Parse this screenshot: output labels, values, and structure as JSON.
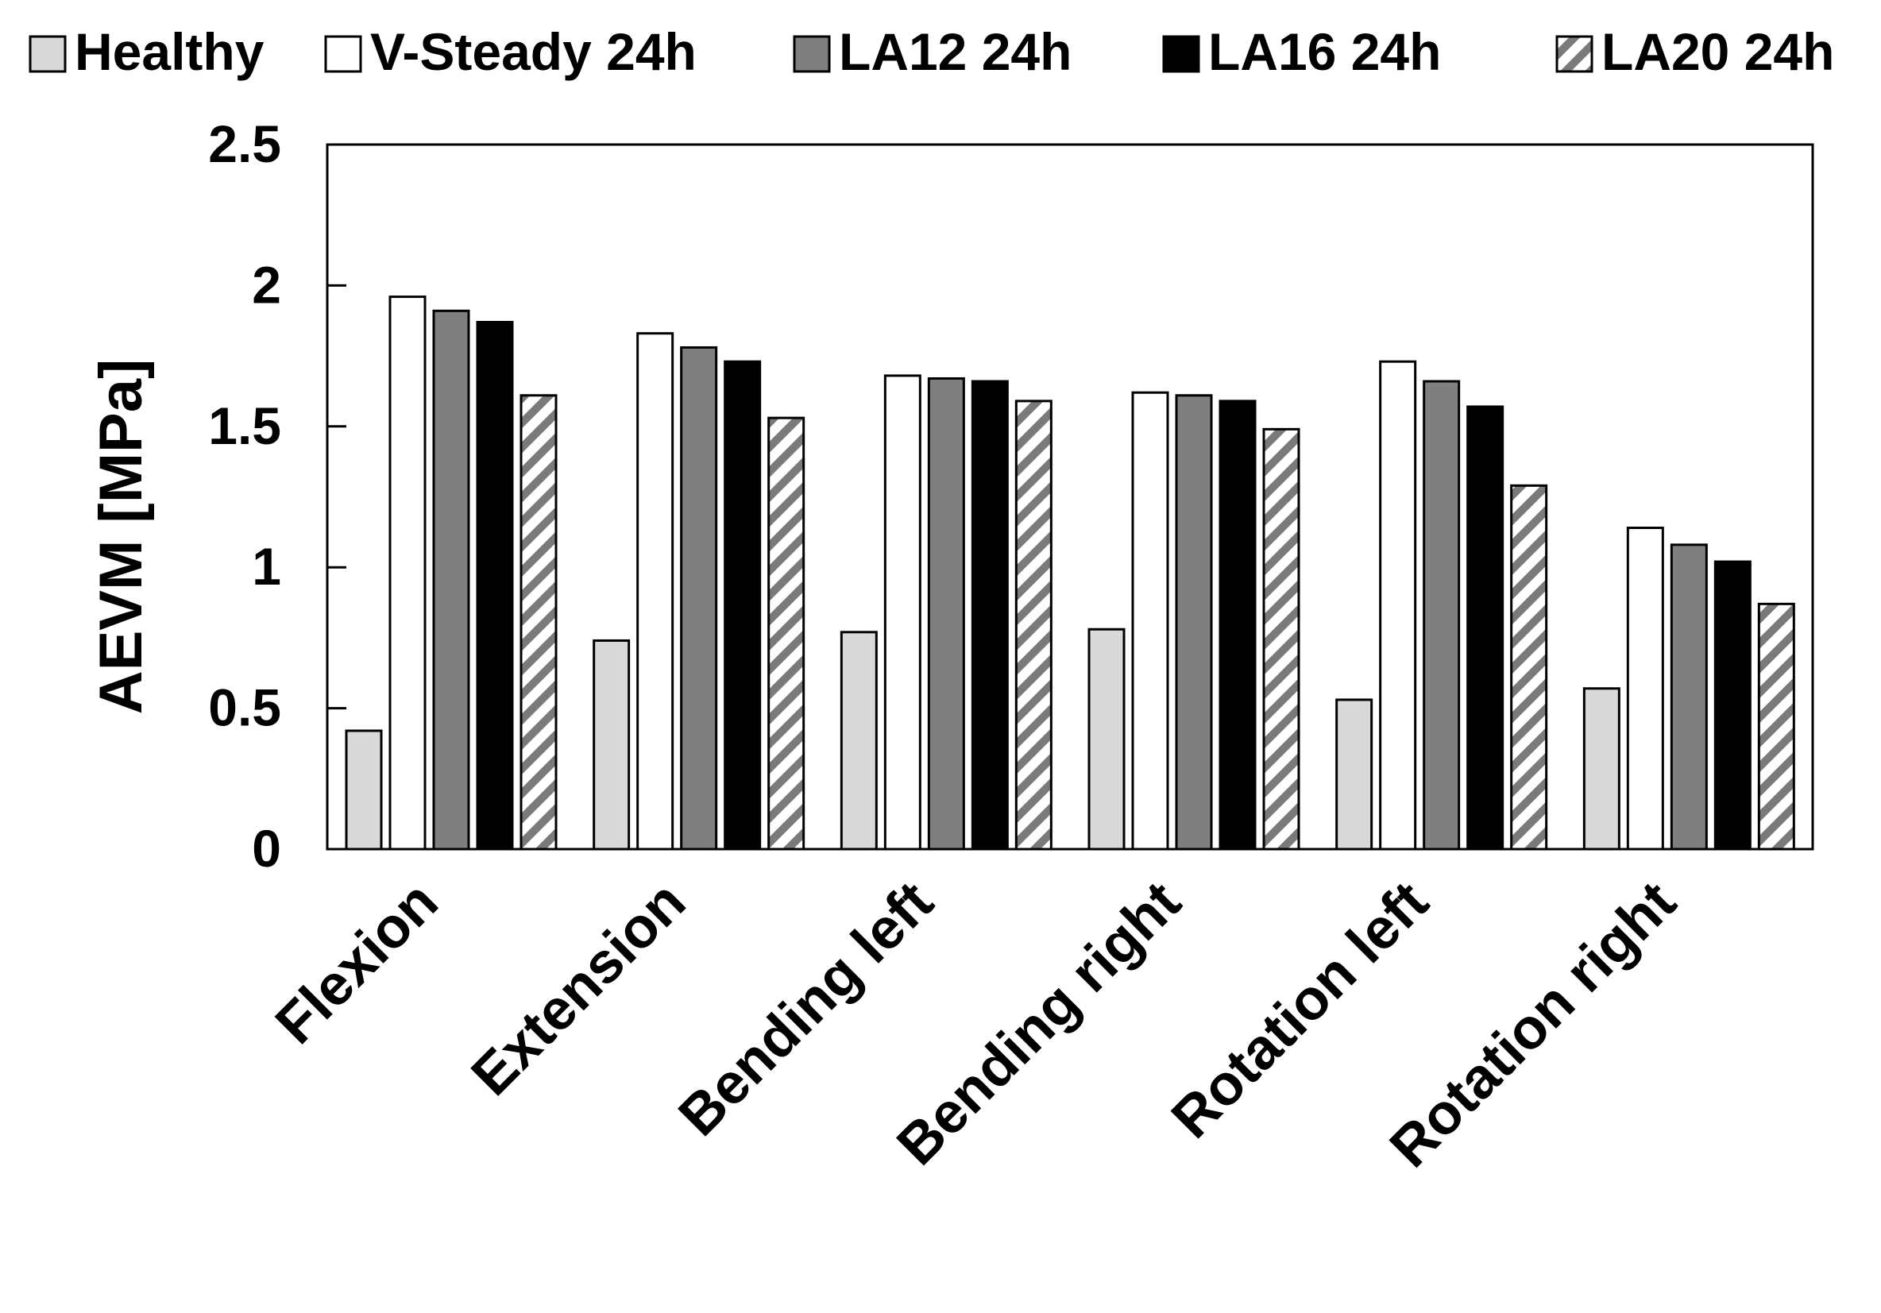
{
  "chart_data": {
    "type": "bar",
    "title": "",
    "xlabel": "",
    "ylabel": "AEVM [MPa]",
    "ylim": [
      0,
      2.5
    ],
    "yticks": [
      "0",
      "0.5",
      "1",
      "1.5",
      "2",
      "2.5"
    ],
    "grid": false,
    "legend_position": "top",
    "categories": [
      "Flexion",
      "Extension",
      "Bending left",
      "Bending right",
      "Rotation left",
      "Rotation right"
    ],
    "series": [
      {
        "name": "Healthy",
        "values": [
          0.42,
          0.74,
          0.77,
          0.78,
          0.53,
          0.57
        ],
        "fill": "#d9d9d9",
        "pattern": "solid"
      },
      {
        "name": "V-Steady 24h",
        "values": [
          1.96,
          1.83,
          1.68,
          1.62,
          1.73,
          1.14
        ],
        "fill": "#ffffff",
        "pattern": "solid"
      },
      {
        "name": "LA12 24h",
        "values": [
          1.91,
          1.78,
          1.67,
          1.61,
          1.66,
          1.08
        ],
        "fill": "#7f7f7f",
        "pattern": "solid"
      },
      {
        "name": "LA16 24h",
        "values": [
          1.87,
          1.73,
          1.66,
          1.59,
          1.57,
          1.02
        ],
        "fill": "#000000",
        "pattern": "solid"
      },
      {
        "name": "LA20 24h",
        "values": [
          1.61,
          1.53,
          1.59,
          1.49,
          1.29,
          0.87
        ],
        "fill": "#ffffff",
        "pattern": "diagonal-stripe"
      }
    ]
  }
}
